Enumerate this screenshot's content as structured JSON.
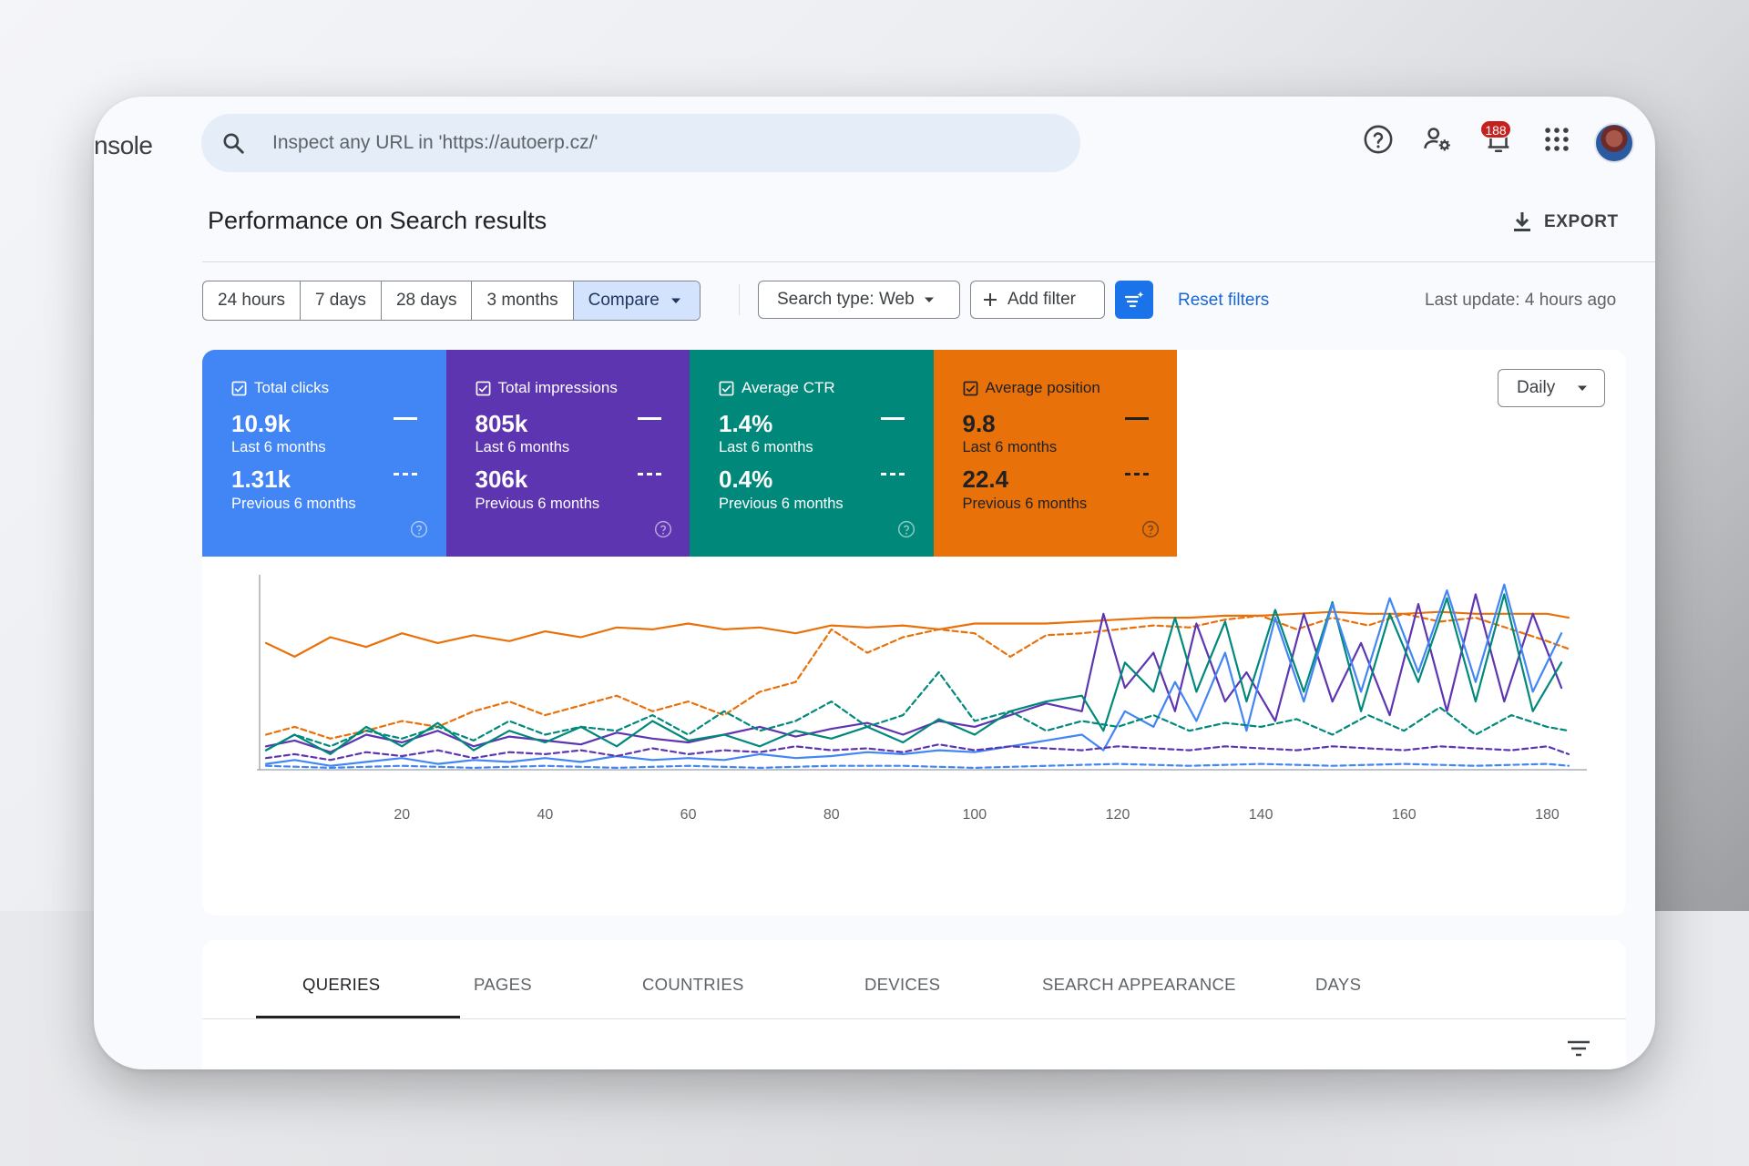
{
  "app": {
    "brand_fragment": "nsole"
  },
  "search": {
    "placeholder": "Inspect any URL in 'https://autoerp.cz/'"
  },
  "topbar": {
    "notification_count": "188",
    "icons": [
      "help-icon",
      "admin-settings-icon",
      "notifications-icon",
      "apps-grid-icon",
      "avatar"
    ]
  },
  "page": {
    "title": "Performance on Search results",
    "export_label": "EXPORT"
  },
  "filters": {
    "ranges": [
      "24 hours",
      "7 days",
      "28 days",
      "3 months"
    ],
    "compare_label": "Compare",
    "search_type": "Search type: Web",
    "add_filter": "Add filter",
    "reset": "Reset filters",
    "last_update": "Last update: 4 hours ago"
  },
  "metrics": [
    {
      "label": "Total clicks",
      "current": "10.9k",
      "current_period": "Last 6 months",
      "previous": "1.31k",
      "previous_period": "Previous 6 months",
      "color": "#4285f4",
      "text_color": "#ffffff"
    },
    {
      "label": "Total impressions",
      "current": "805k",
      "current_period": "Last 6 months",
      "previous": "306k",
      "previous_period": "Previous 6 months",
      "color": "#5e35b1",
      "text_color": "#ffffff"
    },
    {
      "label": "Average CTR",
      "current": "1.4%",
      "current_period": "Last 6 months",
      "previous": "0.4%",
      "previous_period": "Previous 6 months",
      "color": "#00897b",
      "text_color": "#ffffff"
    },
    {
      "label": "Average position",
      "current": "9.8",
      "current_period": "Last 6 months",
      "previous": "22.4",
      "previous_period": "Previous 6 months",
      "color": "#e8710a",
      "text_color": "#202124"
    }
  ],
  "granularity": "Daily",
  "chart_data": {
    "type": "line",
    "x_ticks": [
      20,
      40,
      60,
      80,
      100,
      120,
      140,
      160,
      180
    ],
    "xlim": [
      1,
      183
    ],
    "ylim": [
      0,
      100
    ],
    "grid": false,
    "series": [
      {
        "name": "Average position",
        "color": "#e8710a",
        "dashed": false,
        "x": [
          1,
          5,
          10,
          15,
          20,
          25,
          30,
          35,
          40,
          45,
          50,
          55,
          60,
          65,
          70,
          75,
          80,
          85,
          90,
          95,
          100,
          105,
          110,
          115,
          120,
          125,
          130,
          135,
          140,
          145,
          150,
          155,
          160,
          165,
          170,
          175,
          180,
          183
        ],
        "y": [
          65,
          58,
          68,
          63,
          70,
          65,
          69,
          66,
          71,
          68,
          73,
          72,
          75,
          72,
          73,
          70,
          74,
          73,
          74,
          72,
          75,
          75,
          75,
          76,
          77,
          78,
          78,
          79,
          79,
          80,
          81,
          80,
          80,
          81,
          80,
          80,
          80,
          78
        ]
      },
      {
        "name": "Average position",
        "color": "#e8710a",
        "dashed": true,
        "x": [
          1,
          5,
          10,
          15,
          20,
          25,
          30,
          35,
          40,
          45,
          50,
          55,
          60,
          65,
          70,
          75,
          80,
          85,
          90,
          95,
          100,
          105,
          110,
          115,
          120,
          125,
          130,
          135,
          140,
          145,
          150,
          155,
          160,
          165,
          170,
          175,
          180,
          183
        ],
        "y": [
          18,
          22,
          16,
          20,
          25,
          22,
          30,
          35,
          28,
          33,
          38,
          30,
          35,
          28,
          40,
          45,
          72,
          60,
          68,
          72,
          70,
          58,
          69,
          70,
          72,
          74,
          73,
          77,
          79,
          72,
          78,
          74,
          80,
          76,
          78,
          72,
          66,
          62
        ]
      },
      {
        "name": "Total impressions",
        "color": "#5e35b1",
        "dashed": false,
        "x": [
          1,
          5,
          10,
          15,
          20,
          25,
          30,
          35,
          40,
          45,
          50,
          55,
          60,
          65,
          70,
          75,
          80,
          85,
          90,
          95,
          100,
          105,
          110,
          115,
          118,
          121,
          125,
          128,
          131,
          135,
          138,
          142,
          146,
          150,
          154,
          158,
          162,
          166,
          170,
          174,
          178,
          182
        ],
        "y": [
          12,
          15,
          9,
          18,
          14,
          20,
          12,
          17,
          15,
          13,
          19,
          16,
          14,
          18,
          22,
          17,
          21,
          24,
          18,
          25,
          22,
          28,
          34,
          30,
          80,
          42,
          60,
          30,
          75,
          35,
          50,
          25,
          80,
          35,
          65,
          28,
          85,
          30,
          90,
          35,
          80,
          42
        ]
      },
      {
        "name": "Average CTR",
        "color": "#00897b",
        "dashed": false,
        "x": [
          1,
          5,
          10,
          15,
          20,
          25,
          30,
          35,
          40,
          45,
          50,
          55,
          60,
          65,
          70,
          75,
          80,
          85,
          90,
          95,
          100,
          105,
          110,
          115,
          118,
          121,
          125,
          128,
          131,
          135,
          138,
          142,
          146,
          150,
          154,
          158,
          162,
          166,
          170,
          174,
          178,
          182
        ],
        "y": [
          10,
          18,
          8,
          22,
          12,
          24,
          10,
          20,
          14,
          22,
          12,
          25,
          15,
          18,
          12,
          20,
          16,
          22,
          14,
          26,
          18,
          30,
          35,
          38,
          20,
          55,
          40,
          78,
          40,
          76,
          35,
          82,
          40,
          86,
          30,
          80,
          45,
          88,
          35,
          90,
          30,
          55
        ]
      },
      {
        "name": "Total clicks",
        "color": "#4285f4",
        "dashed": false,
        "x": [
          1,
          5,
          10,
          15,
          20,
          25,
          30,
          35,
          40,
          45,
          50,
          55,
          60,
          65,
          70,
          75,
          80,
          85,
          90,
          95,
          100,
          105,
          110,
          115,
          118,
          121,
          125,
          128,
          131,
          135,
          138,
          142,
          146,
          150,
          154,
          158,
          162,
          166,
          170,
          174,
          178,
          182
        ],
        "y": [
          3,
          5,
          2,
          4,
          6,
          3,
          5,
          4,
          6,
          4,
          7,
          5,
          6,
          5,
          8,
          6,
          7,
          9,
          8,
          10,
          9,
          12,
          15,
          18,
          10,
          30,
          22,
          45,
          25,
          60,
          20,
          78,
          35,
          85,
          40,
          88,
          50,
          92,
          45,
          95,
          40,
          70
        ]
      },
      {
        "name": "Average CTR",
        "color": "#00897b",
        "dashed": true,
        "x": [
          1,
          5,
          10,
          15,
          20,
          25,
          30,
          35,
          40,
          45,
          50,
          55,
          60,
          65,
          70,
          75,
          80,
          85,
          90,
          95,
          100,
          105,
          110,
          115,
          120,
          125,
          130,
          135,
          140,
          145,
          150,
          155,
          160,
          165,
          170,
          175,
          180,
          183
        ],
        "y": [
          10,
          18,
          12,
          20,
          16,
          22,
          15,
          25,
          18,
          22,
          20,
          28,
          18,
          30,
          20,
          25,
          35,
          22,
          28,
          50,
          25,
          30,
          20,
          25,
          22,
          28,
          20,
          24,
          22,
          26,
          18,
          28,
          20,
          32,
          18,
          28,
          22,
          20
        ]
      },
      {
        "name": "Total impressions",
        "color": "#5e35b1",
        "dashed": true,
        "x": [
          1,
          5,
          10,
          15,
          20,
          25,
          30,
          35,
          40,
          45,
          50,
          55,
          60,
          65,
          70,
          75,
          80,
          85,
          90,
          95,
          100,
          105,
          110,
          115,
          120,
          125,
          130,
          135,
          140,
          145,
          150,
          155,
          160,
          165,
          170,
          175,
          180,
          183
        ],
        "y": [
          6,
          8,
          5,
          9,
          7,
          10,
          6,
          9,
          8,
          10,
          7,
          11,
          8,
          10,
          9,
          12,
          10,
          11,
          9,
          13,
          10,
          12,
          11,
          10,
          12,
          11,
          10,
          12,
          11,
          10,
          12,
          11,
          10,
          12,
          11,
          10,
          12,
          8
        ]
      },
      {
        "name": "Total clicks",
        "color": "#4285f4",
        "dashed": true,
        "x": [
          1,
          10,
          20,
          30,
          40,
          50,
          60,
          70,
          80,
          90,
          100,
          110,
          120,
          130,
          140,
          150,
          160,
          170,
          180,
          183
        ],
        "y": [
          2,
          1,
          2,
          1,
          2,
          1,
          2,
          1,
          2,
          2,
          1,
          2,
          3,
          2,
          3,
          2,
          3,
          2,
          3,
          2
        ]
      }
    ]
  },
  "tabs": [
    "QUERIES",
    "PAGES",
    "COUNTRIES",
    "DEVICES",
    "SEARCH APPEARANCE",
    "DAYS"
  ],
  "active_tab": "QUERIES"
}
